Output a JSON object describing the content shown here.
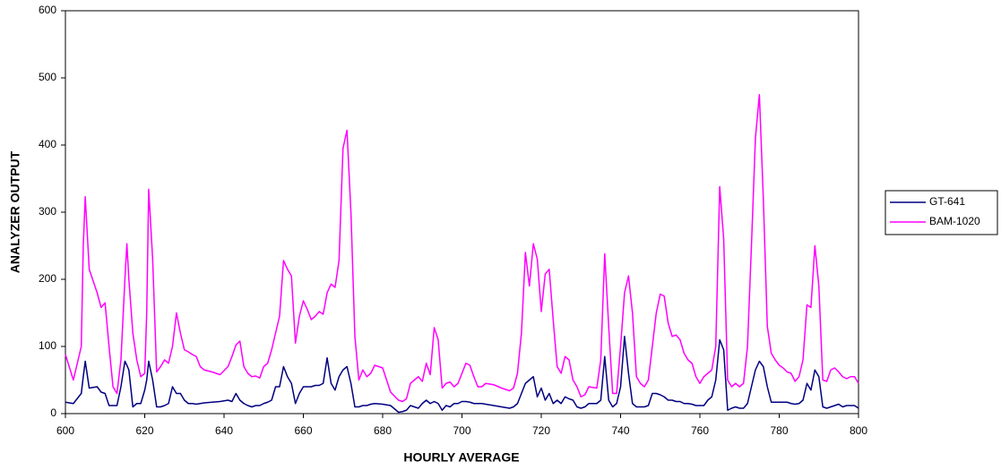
{
  "chart_data": {
    "type": "line",
    "xlabel": "HOURLY AVERAGE",
    "ylabel": "ANALYZER OUTPUT",
    "x": [
      600,
      602,
      604,
      604.5,
      605,
      606,
      608,
      609,
      610,
      611,
      612,
      613,
      614,
      615,
      615.5,
      616,
      617,
      618,
      619,
      620,
      620.5,
      621,
      622,
      623,
      624,
      625,
      626,
      627,
      628,
      629,
      630,
      631,
      632,
      633,
      634,
      635,
      637,
      639,
      641,
      642,
      643,
      644,
      645,
      646,
      647,
      648,
      649,
      650,
      651,
      652,
      653,
      654,
      655,
      656,
      657,
      658,
      659,
      660,
      661,
      662,
      663,
      664,
      665,
      666,
      667,
      668,
      669,
      670,
      671,
      672,
      673,
      674,
      675,
      676,
      677,
      678,
      680,
      682,
      684,
      685,
      686,
      687,
      688,
      689,
      690,
      691,
      692,
      693,
      694,
      695,
      696,
      697,
      698,
      699,
      700,
      701,
      702,
      703,
      704,
      705,
      706,
      708,
      710,
      712,
      713,
      714,
      715,
      716,
      717,
      718,
      719,
      720,
      721,
      722,
      723,
      724,
      725,
      726,
      727,
      728,
      729,
      730,
      731,
      732,
      734,
      735,
      736,
      737,
      738,
      739,
      740,
      741,
      742,
      743,
      744,
      745,
      746,
      747,
      748,
      749,
      750,
      751,
      752,
      753,
      754,
      755,
      756,
      757,
      758,
      759,
      760,
      761,
      762,
      763,
      764,
      765,
      766,
      767,
      768,
      769,
      770,
      771,
      772,
      773,
      774,
      775,
      776,
      777,
      778,
      779,
      780,
      781,
      782,
      783,
      784,
      785,
      786,
      787,
      788,
      789,
      790,
      791,
      792,
      793,
      794,
      795,
      796,
      797,
      798,
      799,
      800
    ],
    "series": [
      {
        "name": "GT-641",
        "color": "#000080",
        "values": [
          17,
          15,
          30,
          55,
          78,
          38,
          40,
          32,
          30,
          12,
          12,
          12,
          40,
          78,
          72,
          65,
          10,
          15,
          15,
          35,
          50,
          78,
          50,
          10,
          10,
          12,
          15,
          40,
          30,
          30,
          20,
          15,
          15,
          14,
          15,
          16,
          17,
          18,
          20,
          18,
          30,
          20,
          15,
          12,
          10,
          12,
          12,
          15,
          17,
          20,
          40,
          40,
          70,
          55,
          45,
          15,
          30,
          40,
          40,
          40,
          42,
          42,
          45,
          83,
          45,
          35,
          55,
          65,
          70,
          45,
          10,
          10,
          12,
          12,
          14,
          15,
          14,
          12,
          2,
          3,
          5,
          12,
          10,
          8,
          15,
          20,
          15,
          18,
          15,
          5,
          12,
          10,
          15,
          15,
          18,
          18,
          17,
          15,
          15,
          15,
          14,
          12,
          10,
          8,
          10,
          15,
          30,
          45,
          50,
          55,
          25,
          38,
          20,
          30,
          15,
          20,
          15,
          25,
          22,
          20,
          10,
          8,
          10,
          15,
          15,
          20,
          85,
          20,
          10,
          15,
          40,
          115,
          60,
          15,
          10,
          10,
          10,
          12,
          30,
          30,
          28,
          25,
          20,
          20,
          18,
          18,
          15,
          15,
          14,
          12,
          12,
          12,
          20,
          25,
          50,
          110,
          95,
          5,
          8,
          10,
          8,
          8,
          15,
          40,
          65,
          78,
          70,
          40,
          17,
          17,
          17,
          17,
          17,
          15,
          14,
          15,
          20,
          45,
          35,
          65,
          55,
          10,
          8,
          10,
          12,
          14,
          10,
          12,
          12,
          12,
          8
        ]
      },
      {
        "name": "BAM-1020",
        "color": "#ff00ff",
        "values": [
          88,
          50,
          100,
          250,
          323,
          215,
          180,
          158,
          165,
          100,
          40,
          30,
          80,
          200,
          253,
          200,
          120,
          80,
          55,
          60,
          150,
          334,
          230,
          62,
          70,
          80,
          75,
          100,
          150,
          120,
          95,
          92,
          88,
          85,
          70,
          65,
          62,
          58,
          70,
          85,
          102,
          108,
          70,
          60,
          55,
          56,
          53,
          70,
          75,
          95,
          120,
          145,
          228,
          215,
          205,
          105,
          145,
          168,
          155,
          140,
          145,
          152,
          148,
          180,
          193,
          188,
          228,
          395,
          422,
          300,
          115,
          50,
          65,
          55,
          60,
          72,
          68,
          32,
          20,
          18,
          22,
          45,
          50,
          55,
          48,
          75,
          58,
          128,
          110,
          38,
          45,
          47,
          40,
          45,
          60,
          75,
          72,
          55,
          40,
          40,
          45,
          43,
          38,
          34,
          38,
          60,
          120,
          240,
          190,
          253,
          230,
          152,
          208,
          215,
          140,
          70,
          60,
          85,
          80,
          50,
          40,
          25,
          28,
          40,
          38,
          80,
          238,
          130,
          30,
          30,
          100,
          180,
          205,
          150,
          55,
          45,
          40,
          50,
          100,
          150,
          178,
          175,
          135,
          115,
          117,
          110,
          90,
          80,
          75,
          55,
          45,
          55,
          60,
          65,
          100,
          338,
          260,
          50,
          40,
          45,
          40,
          45,
          100,
          250,
          410,
          475,
          320,
          130,
          90,
          80,
          72,
          68,
          62,
          60,
          48,
          55,
          80,
          162,
          158,
          250,
          190,
          50,
          48,
          65,
          68,
          62,
          55,
          52,
          55,
          55,
          45
        ]
      }
    ],
    "xlim": [
      600,
      800
    ],
    "xticks": [
      600,
      620,
      640,
      660,
      680,
      700,
      720,
      740,
      760,
      780,
      800
    ],
    "ylim": [
      0,
      600
    ],
    "yticks": [
      0,
      100,
      200,
      300,
      400,
      500,
      600
    ],
    "grid": false,
    "legend": "right"
  }
}
